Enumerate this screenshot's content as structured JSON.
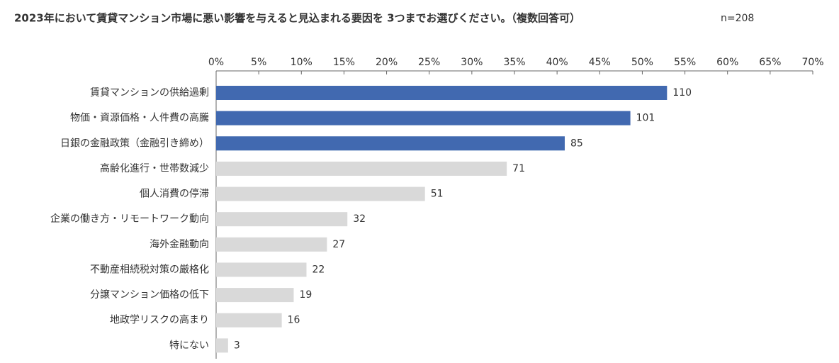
{
  "chart_data": {
    "type": "barh",
    "title": "2023年において賃貸マンション市場に悪い影響を与えると見込まれる要因を 3つまでお選びください。（複数回答可）",
    "subtitle": "n=208",
    "categories": [
      "賃貸マンションの供給過剰",
      "物価・資源価格・人件費の高騰",
      "日銀の金融政策（金融引き締め）",
      "高齢化進行・世帯数減少",
      "個人消費の停滞",
      "企業の働き方・リモートワーク動向",
      "海外金融動向",
      "不動産相続税対策の厳格化",
      "分譲マンション価格の低下",
      "地政学リスクの高まり",
      "特にない"
    ],
    "values": [
      52.9,
      48.6,
      40.9,
      34.1,
      24.5,
      15.4,
      13.0,
      10.6,
      9.1,
      7.7,
      1.4
    ],
    "value_labels": [
      "110",
      "101",
      "85",
      "71",
      "51",
      "32",
      "27",
      "22",
      "19",
      "16",
      "3"
    ],
    "colors": [
      "#4169b0",
      "#4169b0",
      "#4169b0",
      "#d9d9d9",
      "#d9d9d9",
      "#d9d9d9",
      "#d9d9d9",
      "#d9d9d9",
      "#d9d9d9",
      "#d9d9d9",
      "#d9d9d9"
    ],
    "xlim": [
      0,
      70
    ],
    "xticks": [
      {
        "value": 0,
        "label": "0%"
      },
      {
        "value": 5,
        "label": "5%"
      },
      {
        "value": 10,
        "label": "10%"
      },
      {
        "value": 15,
        "label": "15%"
      },
      {
        "value": 20,
        "label": "20%"
      },
      {
        "value": 25,
        "label": "25%"
      },
      {
        "value": 30,
        "label": "30%"
      },
      {
        "value": 35,
        "label": "35%"
      },
      {
        "value": 40,
        "label": "40%"
      },
      {
        "value": 45,
        "label": "45%"
      },
      {
        "value": 50,
        "label": "50%"
      },
      {
        "value": 55,
        "label": "55%"
      },
      {
        "value": 60,
        "label": "60%"
      },
      {
        "value": 65,
        "label": "65%"
      },
      {
        "value": 70,
        "label": "70%"
      }
    ],
    "grid": false
  }
}
